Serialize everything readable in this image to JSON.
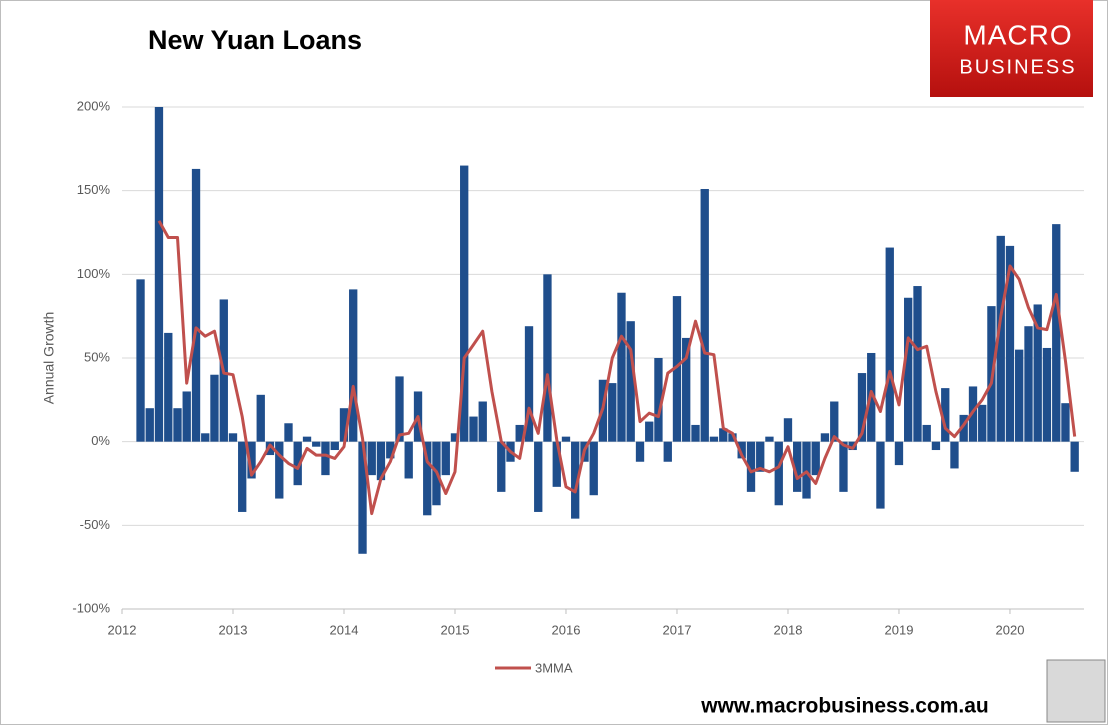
{
  "chart_data": {
    "type": "bar",
    "title": "New Yuan Loans",
    "y_label": "Annual Growth",
    "brand": [
      "MACRO",
      "BUSINESS"
    ],
    "source": "www.macrobusiness.com.au",
    "x": [
      2012.167,
      2012.25,
      2012.333,
      2012.417,
      2012.5,
      2012.583,
      2012.667,
      2012.75,
      2012.833,
      2012.917,
      2013,
      2013.083,
      2013.167,
      2013.25,
      2013.333,
      2013.417,
      2013.5,
      2013.583,
      2013.667,
      2013.75,
      2013.833,
      2013.917,
      2014,
      2014.083,
      2014.167,
      2014.25,
      2014.333,
      2014.417,
      2014.5,
      2014.583,
      2014.667,
      2014.75,
      2014.833,
      2014.917,
      2015,
      2015.083,
      2015.167,
      2015.25,
      2015.333,
      2015.417,
      2015.5,
      2015.583,
      2015.667,
      2015.75,
      2015.833,
      2015.917,
      2016,
      2016.083,
      2016.167,
      2016.25,
      2016.333,
      2016.417,
      2016.5,
      2016.583,
      2016.667,
      2016.75,
      2016.833,
      2016.917,
      2017,
      2017.083,
      2017.167,
      2017.25,
      2017.333,
      2017.417,
      2017.5,
      2017.583,
      2017.667,
      2017.75,
      2017.833,
      2017.917,
      2018,
      2018.083,
      2018.167,
      2018.25,
      2018.333,
      2018.417,
      2018.5,
      2018.583,
      2018.667,
      2018.75,
      2018.833,
      2018.917,
      2019,
      2019.083,
      2019.167,
      2019.25,
      2019.333,
      2019.417,
      2019.5,
      2019.583,
      2019.667,
      2019.75,
      2019.833,
      2019.917,
      2020,
      2020.083,
      2020.167,
      2020.25,
      2020.333,
      2020.417,
      2020.5,
      2020.583
    ],
    "series": [
      {
        "color": "#1f4e8c",
        "values": [
          97,
          20,
          200,
          65,
          20,
          30,
          163,
          5,
          40,
          85,
          5,
          -42,
          -22,
          28,
          -8,
          -34,
          11,
          -26,
          3,
          -3,
          -20,
          -5,
          20,
          91,
          -67,
          -20,
          -23,
          -10,
          39,
          -22,
          30,
          -44,
          -38,
          -20,
          5,
          165,
          15,
          24,
          0,
          -30,
          -12,
          10,
          69,
          -42,
          100,
          -27,
          3,
          -46,
          -12,
          -32,
          37,
          35,
          89,
          72,
          -12,
          12,
          50,
          -12,
          87,
          62,
          10,
          151,
          3,
          8,
          5,
          -10,
          -30,
          -18,
          3,
          -38,
          14,
          -30,
          -34,
          -20,
          5,
          24,
          -30,
          -5,
          41,
          53,
          -40,
          116,
          -14,
          86,
          93,
          10,
          -5,
          32,
          -16,
          16,
          33,
          22,
          81,
          123,
          117,
          55,
          69,
          82,
          56,
          130,
          23,
          -18
        ]
      },
      {
        "name": "3MMA",
        "color": "#c0504d",
        "values": [
          null,
          null,
          132,
          122,
          122,
          35,
          68,
          63,
          66,
          41,
          40,
          15,
          -20,
          -12,
          -2,
          -8,
          -13,
          -16,
          -4,
          -8,
          -8,
          -10,
          -3,
          33,
          2,
          -43,
          -22,
          -12,
          4,
          5,
          15,
          -12,
          -18,
          -31,
          -18,
          50,
          58,
          66,
          30,
          0,
          -6,
          -10,
          20,
          5,
          40,
          1,
          -27,
          -30,
          -5,
          5,
          20,
          50,
          63,
          55,
          12,
          17,
          15,
          41,
          45,
          50,
          72,
          53,
          52,
          8,
          5,
          -8,
          -18,
          -16,
          -18,
          -15,
          -3,
          -22,
          -18,
          -25,
          -10,
          3,
          -2,
          -4,
          5,
          30,
          18,
          42,
          22,
          62,
          55,
          57,
          30,
          8,
          3,
          10,
          18,
          25,
          35,
          75,
          105,
          97,
          80,
          68,
          67,
          88,
          48,
          3
        ]
      }
    ],
    "xlim": [
      2012,
      2020.667
    ],
    "xticks": [
      2012,
      2013,
      2014,
      2015,
      2016,
      2017,
      2018,
      2019,
      2020
    ],
    "ylim": [
      -100,
      200
    ],
    "yticks": [
      {
        "value": -100,
        "label": "-100%"
      },
      {
        "value": -50,
        "label": "-50%"
      },
      {
        "value": 0,
        "label": "0%"
      },
      {
        "value": 50,
        "label": "50%"
      },
      {
        "value": 100,
        "label": "100%"
      },
      {
        "value": 150,
        "label": "150%"
      },
      {
        "value": 200,
        "label": "200%"
      }
    ],
    "grid": true,
    "legend": "bottom"
  }
}
